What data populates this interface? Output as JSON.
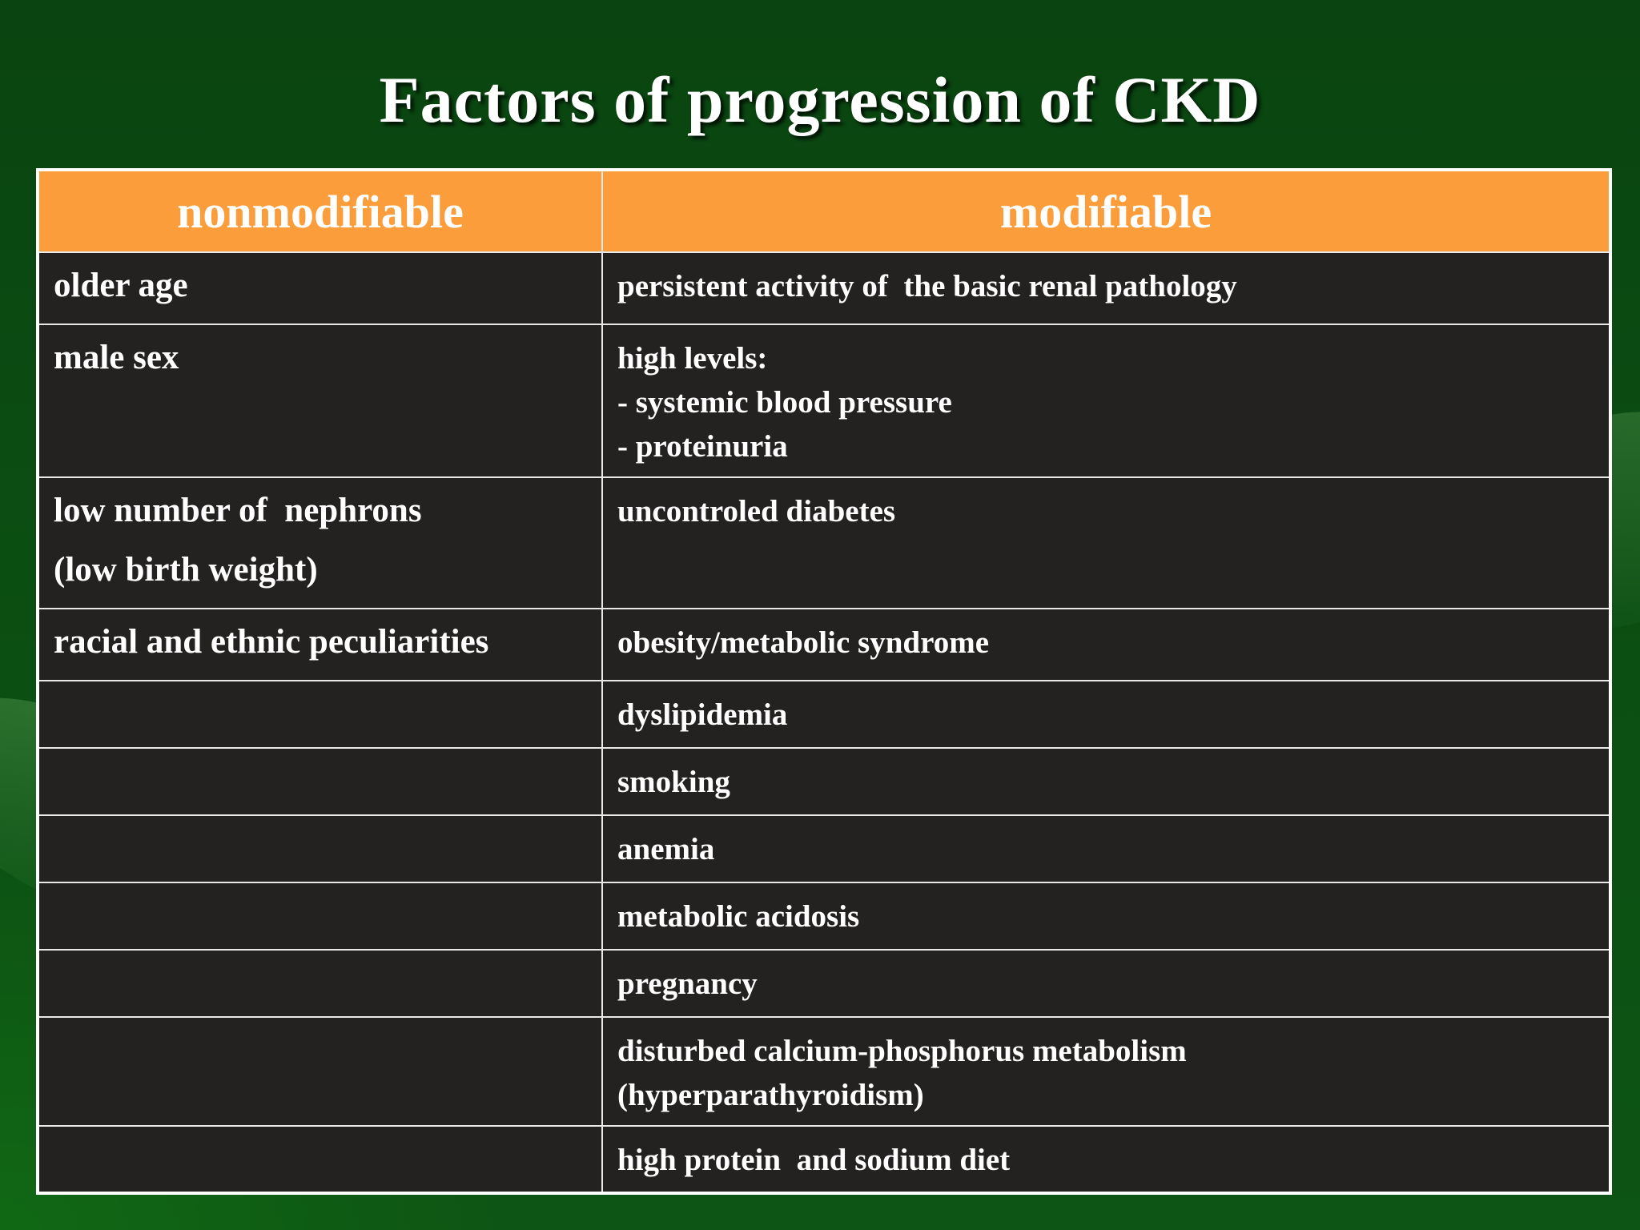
{
  "slide": {
    "title": "Factors of progression of CKD"
  },
  "table": {
    "headers": {
      "nonmodifiable": "nonmodifiable",
      "modifiable": "modifiable"
    },
    "rows": [
      {
        "nonmodifiable": [
          "older age"
        ],
        "modifiable": [
          "persistent activity of  the basic renal pathology"
        ]
      },
      {
        "nonmodifiable": [
          "male sex"
        ],
        "modifiable": [
          "high levels:",
          "- systemic blood pressure",
          "- proteinuria"
        ]
      },
      {
        "nonmodifiable": [
          "low number of  nephrons",
          "(low birth weight)"
        ],
        "modifiable": [
          "uncontroled diabetes"
        ]
      },
      {
        "nonmodifiable": [
          "racial and ethnic peculiarities"
        ],
        "modifiable": [
          "obesity/metabolic syndrome"
        ]
      },
      {
        "nonmodifiable": [],
        "modifiable": [
          "dyslipidemia"
        ]
      },
      {
        "nonmodifiable": [],
        "modifiable": [
          "smoking"
        ]
      },
      {
        "nonmodifiable": [],
        "modifiable": [
          "anemia"
        ]
      },
      {
        "nonmodifiable": [],
        "modifiable": [
          "metabolic acidosis"
        ]
      },
      {
        "nonmodifiable": [],
        "modifiable": [
          "pregnancy"
        ]
      },
      {
        "nonmodifiable": [],
        "modifiable": [
          "disturbed calcium-phosphorus metabolism",
          "(hyperparathyroidism)"
        ]
      },
      {
        "nonmodifiable": [],
        "modifiable": [
          "high protein  and sodium diet"
        ]
      }
    ]
  },
  "colors": {
    "background": "#0b4a10",
    "header_fill": "#fb9d3a",
    "cell_fill": "#242121",
    "text": "#ffffff"
  }
}
